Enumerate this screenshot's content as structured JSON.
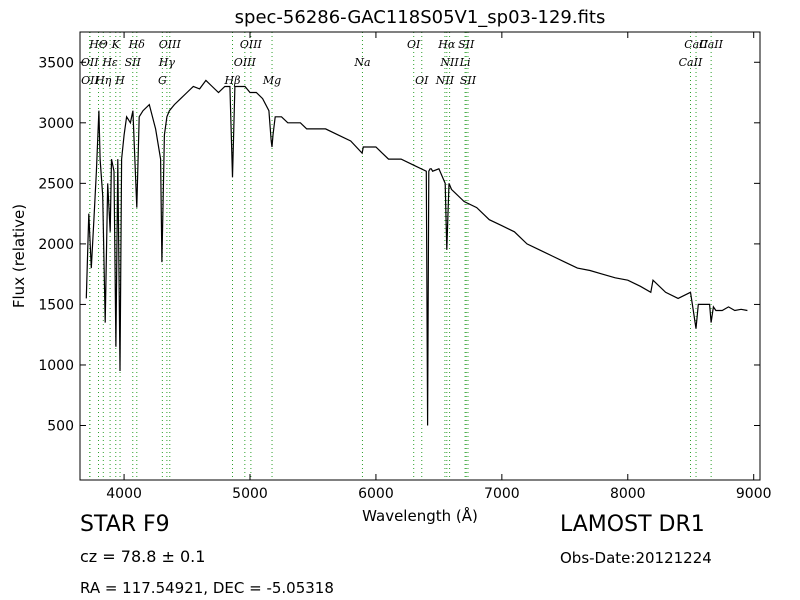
{
  "chart_data": {
    "type": "line",
    "title": "spec-56286-GAC118S05V1_sp03-129.fits",
    "xlabel": "Wavelength (Å)",
    "ylabel": "Flux (relative)",
    "xlim": [
      3650,
      9050
    ],
    "ylim": [
      50,
      3750
    ],
    "xticks": [
      4000,
      5000,
      6000,
      7000,
      8000,
      9000
    ],
    "yticks": [
      500,
      1000,
      1500,
      2000,
      2500,
      3000,
      3500
    ],
    "grid": false,
    "series": [
      {
        "color": "#000000",
        "x": [
          3700,
          3720,
          3740,
          3760,
          3780,
          3800,
          3810,
          3830,
          3850,
          3870,
          3890,
          3900,
          3920,
          3935,
          3950,
          3968,
          3980,
          4000,
          4020,
          4050,
          4070,
          4101,
          4120,
          4150,
          4200,
          4250,
          4290,
          4300,
          4320,
          4340,
          4360,
          4400,
          4450,
          4500,
          4550,
          4600,
          4650,
          4700,
          4750,
          4800,
          4840,
          4861,
          4880,
          4920,
          4960,
          5000,
          5050,
          5100,
          5150,
          5168,
          5175,
          5183,
          5200,
          5250,
          5300,
          5350,
          5400,
          5450,
          5500,
          5600,
          5700,
          5800,
          5890,
          5900,
          6000,
          6100,
          6200,
          6300,
          6400,
          6410,
          6420,
          6430,
          6440,
          6450,
          6500,
          6550,
          6563,
          6580,
          6600,
          6700,
          6800,
          6900,
          7000,
          7100,
          7200,
          7300,
          7400,
          7500,
          7600,
          7700,
          7800,
          7900,
          8000,
          8100,
          8183,
          8200,
          8300,
          8400,
          8498,
          8520,
          8542,
          8560,
          8600,
          8650,
          8662,
          8680,
          8700,
          8750,
          8800,
          8850,
          8900,
          8950
        ],
        "y": [
          1550,
          2250,
          1800,
          2200,
          2600,
          3100,
          2700,
          2400,
          1350,
          2500,
          2100,
          2700,
          2600,
          1150,
          2700,
          950,
          2700,
          2900,
          3050,
          3000,
          3100,
          2300,
          3050,
          3100,
          3150,
          2950,
          2700,
          1850,
          2900,
          3050,
          3100,
          3150,
          3200,
          3250,
          3300,
          3280,
          3350,
          3300,
          3250,
          3300,
          3300,
          2550,
          3300,
          3300,
          3300,
          3250,
          3250,
          3200,
          3100,
          2850,
          2800,
          2900,
          3050,
          3050,
          3000,
          3000,
          3000,
          2950,
          2950,
          2950,
          2900,
          2850,
          2750,
          2800,
          2800,
          2700,
          2700,
          2650,
          2600,
          500,
          2600,
          2620,
          2620,
          2600,
          2620,
          2500,
          1950,
          2500,
          2450,
          2350,
          2300,
          2200,
          2150,
          2100,
          2000,
          1950,
          1900,
          1850,
          1800,
          1780,
          1750,
          1720,
          1700,
          1650,
          1600,
          1700,
          1600,
          1550,
          1600,
          1450,
          1300,
          1500,
          1500,
          1500,
          1350,
          1480,
          1450,
          1450,
          1480,
          1450,
          1460,
          1450
        ]
      }
    ],
    "line_markers": [
      {
        "label": "HΘ",
        "x": 3797
      },
      {
        "label": "K",
        "x": 3934
      },
      {
        "label": "Hδ",
        "x": 4101
      },
      {
        "label": "OIII",
        "x": 4363
      },
      {
        "label": "OIII",
        "x": 5007
      },
      {
        "label": "OI",
        "x": 6300
      },
      {
        "label": "Hα",
        "x": 6563
      },
      {
        "label": "SII",
        "x": 6717
      },
      {
        "label": "CaII",
        "x": 8542
      },
      {
        "label": "OII",
        "x": 3727
      },
      {
        "label": "Hε",
        "x": 3889
      },
      {
        "label": "SII",
        "x": 4069
      },
      {
        "label": "Hγ",
        "x": 4340
      },
      {
        "label": "OIII",
        "x": 4959
      },
      {
        "label": "Na",
        "x": 5893
      },
      {
        "label": "NII",
        "x": 6585
      },
      {
        "label": "Li",
        "x": 6708
      },
      {
        "label": "CaII",
        "x": 8498
      },
      {
        "label": "Hη",
        "x": 3835
      },
      {
        "label": "Hβ",
        "x": 4861
      },
      {
        "label": "Mg",
        "x": 5175
      },
      {
        "label": "OII",
        "x": 3729
      },
      {
        "label": "H",
        "x": 3968
      },
      {
        "label": "G",
        "x": 4304
      },
      {
        "label": "OI",
        "x": 6364
      },
      {
        "label": "NII",
        "x": 6548
      },
      {
        "label": "SII",
        "x": 6731
      },
      {
        "label": "CaII",
        "x": 8662
      }
    ],
    "marker_color": "#2ca02c"
  },
  "footer": {
    "object_class": "STAR   F9",
    "cz": "cz = 78.8 ± 0.1",
    "radec": "RA = 117.54921, DEC = -5.05318",
    "survey": "LAMOST DR1",
    "obs_date": "Obs-Date:20121224"
  }
}
